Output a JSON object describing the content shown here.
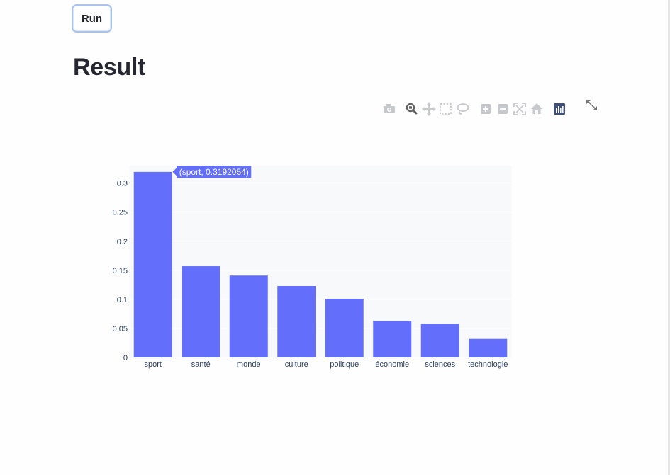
{
  "toolbar": {
    "run_label": "Run"
  },
  "page": {
    "title": "Result"
  },
  "modebar": {
    "icons": [
      "camera-icon",
      "zoom-icon",
      "pan-icon",
      "box-select-icon",
      "lasso-select-icon",
      "zoom-in-icon",
      "zoom-out-icon",
      "autoscale-icon",
      "reset-axes-icon",
      "plotly-logo-icon",
      "fullscreen-icon"
    ]
  },
  "colors": {
    "bar": "#636efa",
    "plot_bg": "#f8f9fb",
    "grid": "#ffffff",
    "axis_text": "#2a3f5f",
    "modebar_icon": "#c6c8cc",
    "modebar_active": "#636363"
  },
  "chart_data": {
    "type": "bar",
    "categories": [
      "sport",
      "santé",
      "monde",
      "culture",
      "politique",
      "économie",
      "sciences",
      "technologie"
    ],
    "values": [
      0.3192054,
      0.157,
      0.141,
      0.123,
      0.101,
      0.063,
      0.058,
      0.032
    ],
    "ylim": [
      0,
      0.33
    ],
    "yticks": [
      0,
      0.05,
      0.1,
      0.15,
      0.2,
      0.25,
      0.3
    ],
    "ytick_labels": [
      "0",
      "0.05",
      "0.1",
      "0.15",
      "0.2",
      "0.25",
      "0.3"
    ],
    "grid": true,
    "hover": {
      "category": "sport",
      "label": "(sport, 0.3192054)"
    }
  }
}
